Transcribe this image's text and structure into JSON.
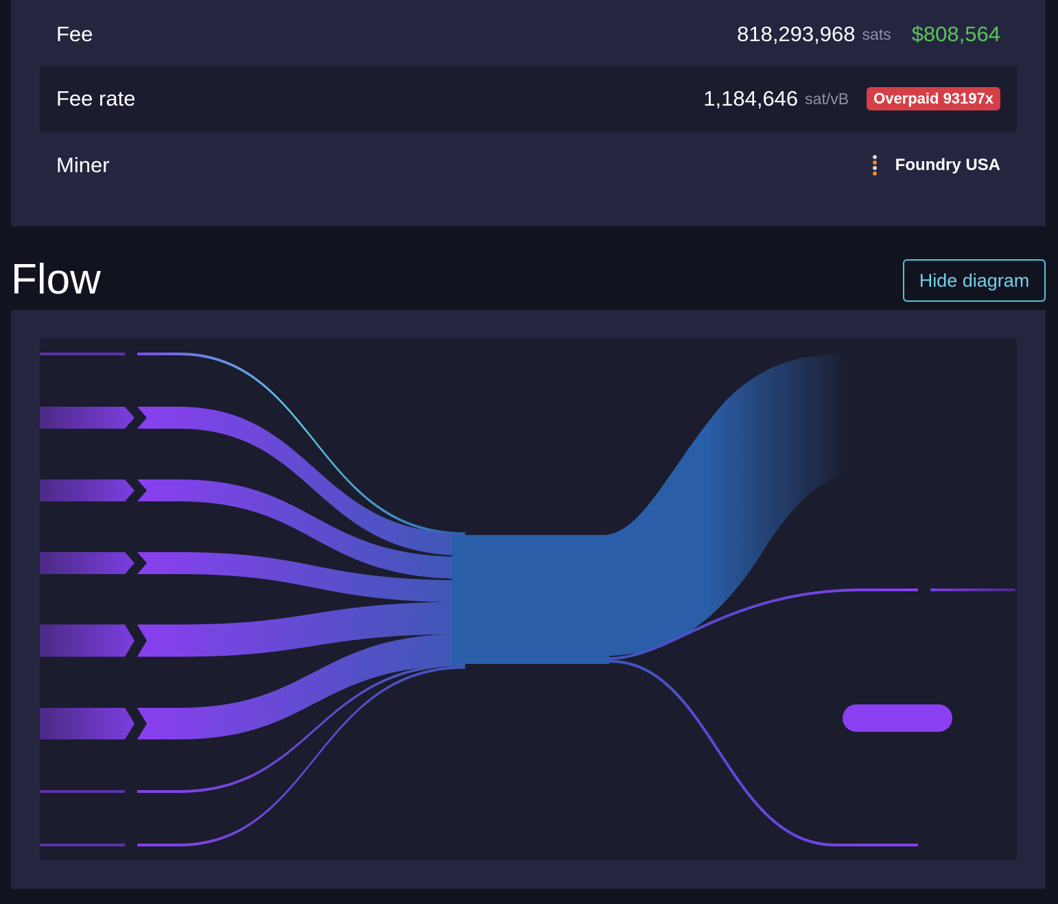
{
  "details": {
    "fee": {
      "label": "Fee",
      "value": "818,293,968",
      "unit": "sats",
      "fiat": "$808,564",
      "fiat_color": "#5bc35b"
    },
    "fee_rate": {
      "label": "Fee rate",
      "value": "1,184,646",
      "unit": "sat/vB",
      "badge": "Overpaid 93197x",
      "badge_color": "#d54048"
    },
    "miner": {
      "label": "Miner",
      "name": "Foundry USA",
      "icon": "foundry-logo-icon"
    }
  },
  "flow": {
    "title": "Flow",
    "toggle_label": "Hide diagram",
    "input_color": "#8a3ff0",
    "hub_color": "#2b5ea8",
    "accent_color": "#5ccbe6",
    "inputs": [
      {
        "weight": 0.06,
        "highlighted": true
      },
      {
        "weight": 1.0
      },
      {
        "weight": 1.0
      },
      {
        "weight": 1.0
      },
      {
        "weight": 1.5
      },
      {
        "weight": 1.45
      },
      {
        "weight": 0.1
      },
      {
        "weight": 0.1
      }
    ],
    "outputs": [
      {
        "kind": "op-return",
        "weight": 5.5
      },
      {
        "kind": "output",
        "weight": 0.1
      },
      {
        "kind": "fee",
        "weight": 0.0
      },
      {
        "kind": "output",
        "weight": 0.1
      }
    ]
  }
}
